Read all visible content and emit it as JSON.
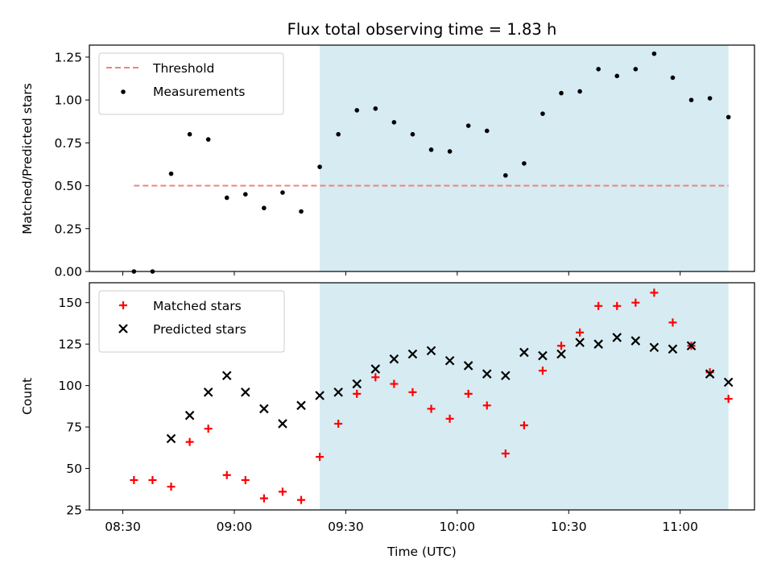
{
  "chart_data": [
    {
      "type": "scatter",
      "title": "Flux total observing time = 1.83 h",
      "xlabel": "",
      "ylabel": "Matched/Predicted stars",
      "ylim": [
        0,
        1.32
      ],
      "yticks": [
        "0.00",
        "0.25",
        "0.50",
        "0.75",
        "1.00",
        "1.25"
      ],
      "legend_position": "upper-left",
      "threshold": {
        "name": "Threshold",
        "value": 0.5,
        "x_start": "08:33",
        "x_end": "11:13",
        "color": "#f08080"
      },
      "shaded_region": {
        "x_start": "09:23",
        "x_end": "11:13",
        "color": "#add8e6"
      },
      "series": [
        {
          "name": "Measurements",
          "marker": "dot",
          "color": "#000000",
          "x": [
            "08:33",
            "08:38",
            "08:43",
            "08:48",
            "08:53",
            "08:58",
            "09:03",
            "09:08",
            "09:13",
            "09:18",
            "09:23",
            "09:28",
            "09:33",
            "09:38",
            "09:43",
            "09:48",
            "09:53",
            "09:58",
            "10:03",
            "10:08",
            "10:13",
            "10:18",
            "10:23",
            "10:28",
            "10:33",
            "10:38",
            "10:43",
            "10:48",
            "10:53",
            "10:58",
            "11:03",
            "11:08",
            "11:13"
          ],
          "y": [
            0.0,
            0.0,
            0.57,
            0.8,
            0.77,
            0.43,
            0.45,
            0.37,
            0.46,
            0.35,
            0.61,
            0.8,
            0.94,
            0.95,
            0.87,
            0.8,
            0.71,
            0.7,
            0.85,
            0.82,
            0.56,
            0.63,
            0.92,
            1.04,
            1.05,
            1.18,
            1.14,
            1.18,
            1.27,
            1.13,
            1.0,
            1.01,
            0.9
          ]
        }
      ]
    },
    {
      "type": "scatter",
      "title": "",
      "xlabel": "Time (UTC)",
      "ylabel": "Count",
      "ylim": [
        25,
        162
      ],
      "yticks": [
        "25",
        "50",
        "75",
        "100",
        "125",
        "150"
      ],
      "xticks": [
        "08:30",
        "09:00",
        "09:30",
        "10:00",
        "10:30",
        "11:00"
      ],
      "legend_position": "upper-left",
      "shaded_region": {
        "x_start": "09:23",
        "x_end": "11:13",
        "color": "#add8e6"
      },
      "series": [
        {
          "name": "Matched stars",
          "marker": "plus",
          "color": "#ff0000",
          "x": [
            "08:33",
            "08:38",
            "08:43",
            "08:48",
            "08:53",
            "08:58",
            "09:03",
            "09:08",
            "09:13",
            "09:18",
            "09:23",
            "09:28",
            "09:33",
            "09:38",
            "09:43",
            "09:48",
            "09:53",
            "09:58",
            "10:03",
            "10:08",
            "10:13",
            "10:18",
            "10:23",
            "10:28",
            "10:33",
            "10:38",
            "10:43",
            "10:48",
            "10:53",
            "10:58",
            "11:03",
            "11:08",
            "11:13"
          ],
          "y": [
            43,
            43,
            39,
            66,
            74,
            46,
            43,
            32,
            36,
            31,
            57,
            77,
            95,
            105,
            101,
            96,
            86,
            80,
            95,
            88,
            59,
            76,
            109,
            124,
            132,
            148,
            148,
            150,
            156,
            138,
            124,
            108,
            92
          ]
        },
        {
          "name": "Predicted stars",
          "marker": "x",
          "color": "#000000",
          "x": [
            "08:43",
            "08:48",
            "08:53",
            "08:58",
            "09:03",
            "09:08",
            "09:13",
            "09:18",
            "09:23",
            "09:28",
            "09:33",
            "09:38",
            "09:43",
            "09:48",
            "09:53",
            "09:58",
            "10:03",
            "10:08",
            "10:13",
            "10:18",
            "10:23",
            "10:28",
            "10:33",
            "10:38",
            "10:43",
            "10:48",
            "10:53",
            "10:58",
            "11:03",
            "11:08",
            "11:13"
          ],
          "y": [
            68,
            82,
            96,
            106,
            96,
            86,
            77,
            88,
            94,
            96,
            101,
            110,
            116,
            119,
            121,
            115,
            112,
            107,
            106,
            120,
            118,
            119,
            126,
            125,
            129,
            127,
            123,
            122,
            124,
            107,
            102
          ]
        }
      ]
    }
  ]
}
